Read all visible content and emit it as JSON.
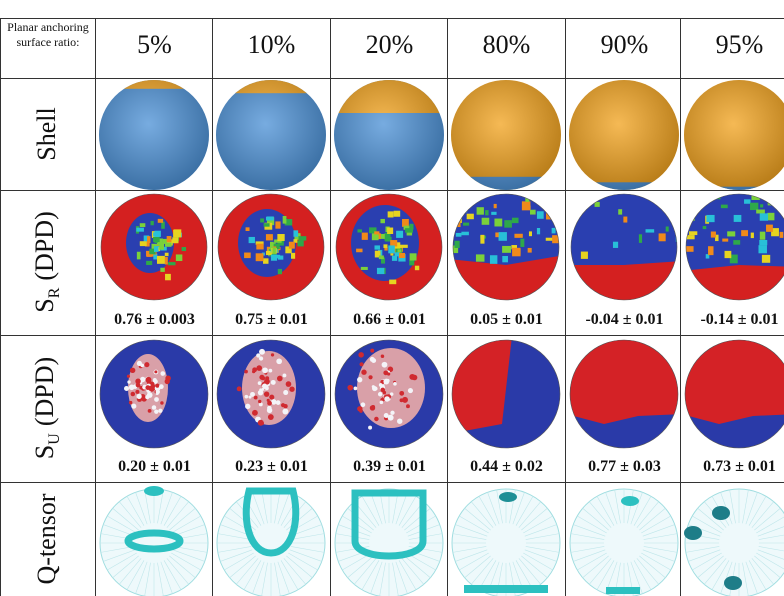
{
  "header": {
    "label": "Planar anchoring surface ratio:",
    "columns": [
      "5%",
      "10%",
      "20%",
      "80%",
      "90%",
      "95%"
    ]
  },
  "rows": [
    {
      "label": "Shell"
    },
    {
      "label": {
        "symbol": "S",
        "subscript": "R",
        "suffix": "(DPD)"
      },
      "values": [
        "0.76 ± 0.003",
        "0.75 ± 0.01",
        "0.66 ± 0.01",
        "0.05 ± 0.01",
        "-0.04 ± 0.01",
        "-0.14 ± 0.01"
      ]
    },
    {
      "label": {
        "symbol": "S",
        "subscript": "U",
        "suffix": "(DPD)"
      },
      "values": [
        "0.20 ± 0.01",
        "0.23 ± 0.01",
        "0.39 ± 0.01",
        "0.44 ± 0.02",
        "0.77 ± 0.03",
        "0.73 ± 0.01"
      ]
    },
    {
      "label": "Q-tensor"
    }
  ]
}
